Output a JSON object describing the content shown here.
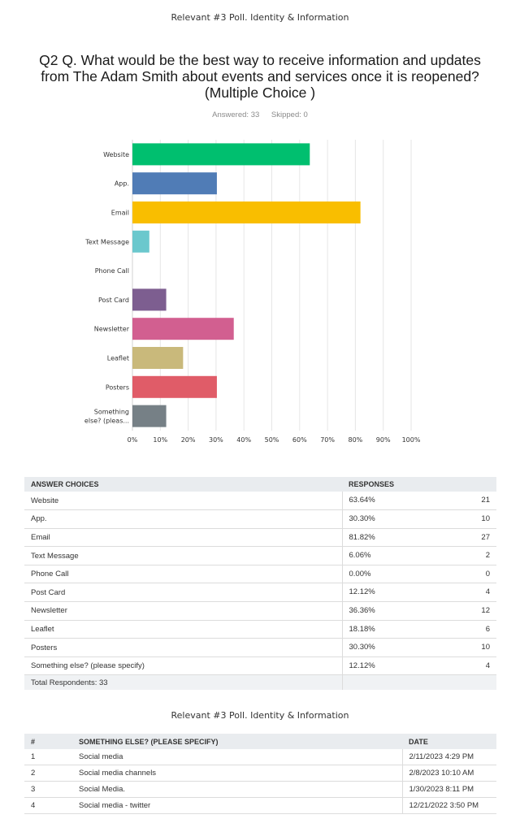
{
  "header": {
    "title": "Relevant #3 Poll.  Identity & Information"
  },
  "question": {
    "text": "Q2 Q. What would be the best way to receive information and updates from The Adam Smith about events and services once it is reopened? (Multiple Choice )",
    "answered_label": "Answered: 33",
    "skipped_label": "Skipped: 0"
  },
  "chart_data": {
    "type": "bar",
    "orientation": "horizontal",
    "categories": [
      "Website",
      "App.",
      "Email",
      "Text Message",
      "Phone Call",
      "Post Card",
      "Newsletter",
      "Leaflet",
      "Posters",
      "Something else? (please specify)"
    ],
    "category_display": [
      "Website",
      "App.",
      "Email",
      "Text Message",
      "Phone Call",
      "Post Card",
      "Newsletter",
      "Leaflet",
      "Posters",
      "Something|else? (pleas..."
    ],
    "values": [
      63.64,
      30.3,
      81.82,
      6.06,
      0.0,
      12.12,
      36.36,
      18.18,
      30.3,
      12.12
    ],
    "colors": [
      "#00bf6f",
      "#507cb6",
      "#f9be00",
      "#6bc8cd",
      "#ff8b4f",
      "#7d5e90",
      "#d25f90",
      "#c9b97b",
      "#e05c68",
      "#768086"
    ],
    "x_ticks": [
      "0%",
      "10%",
      "20%",
      "30%",
      "40%",
      "50%",
      "60%",
      "70%",
      "80%",
      "90%",
      "100%"
    ],
    "xlim": [
      0,
      100
    ],
    "grid": true
  },
  "answers_table": {
    "headers": {
      "choice": "ANSWER CHOICES",
      "responses": "RESPONSES"
    },
    "rows": [
      {
        "choice": "Website",
        "percent": "63.64%",
        "count": "21"
      },
      {
        "choice": "App.",
        "percent": "30.30%",
        "count": "10"
      },
      {
        "choice": "Email",
        "percent": "81.82%",
        "count": "27"
      },
      {
        "choice": "Text Message",
        "percent": "6.06%",
        "count": "2"
      },
      {
        "choice": "Phone Call",
        "percent": "0.00%",
        "count": "0"
      },
      {
        "choice": "Post Card",
        "percent": "12.12%",
        "count": "4"
      },
      {
        "choice": "Newsletter",
        "percent": "36.36%",
        "count": "12"
      },
      {
        "choice": "Leaflet",
        "percent": "18.18%",
        "count": "6"
      },
      {
        "choice": "Posters",
        "percent": "30.30%",
        "count": "10"
      },
      {
        "choice": "Something else? (please specify)",
        "percent": "12.12%",
        "count": "4"
      }
    ],
    "total_label": "Total Respondents: 33"
  },
  "others_table": {
    "headers": {
      "num": "#",
      "text": "SOMETHING ELSE? (PLEASE SPECIFY)",
      "date": "DATE"
    },
    "rows": [
      {
        "num": "1",
        "text": "Social media",
        "date": "2/11/2023 4:29 PM"
      },
      {
        "num": "2",
        "text": "Social media channels",
        "date": "2/8/2023 10:10 AM"
      },
      {
        "num": "3",
        "text": "Social Media.",
        "date": "1/30/2023 8:11 PM"
      },
      {
        "num": "4",
        "text": "Social media - twitter",
        "date": "12/21/2022 3:50 PM"
      }
    ]
  }
}
